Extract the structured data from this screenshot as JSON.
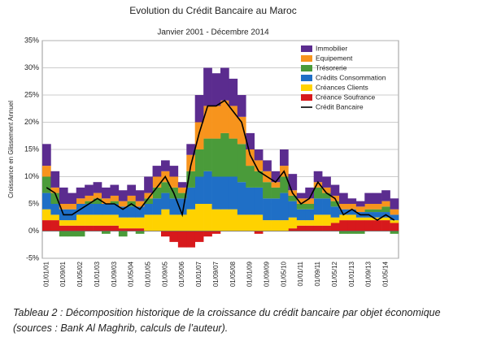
{
  "chart_data": {
    "type": "stacked-bar-line",
    "title": "Evolution du Crédit Bancaire au Maroc",
    "subtitle": "Janvier 2001 - Décembre 2014",
    "y_label": "Croissance en Glissement Annuel",
    "categories": [
      "01/01/01",
      null,
      "01/09/01",
      null,
      "01/05/02",
      null,
      "01/01/03",
      null,
      "01/09/03",
      null,
      "01/05/04",
      null,
      "01/01/05",
      null,
      "01/09/05",
      null,
      "01/05/06",
      null,
      "01/01/07",
      null,
      "01/09/07",
      null,
      "01/05/08",
      null,
      "01/01/09",
      null,
      "01/09/09",
      null,
      "01/05/10",
      null,
      "01/01/11",
      null,
      "01/09/11",
      null,
      "01/05/12",
      null,
      "01/01/13",
      null,
      "01/09/13",
      null,
      "01/05/14",
      null
    ],
    "series": [
      {
        "name": "Immobilier",
        "color": "#5b2c8f",
        "values": [
          4,
          3,
          3,
          2,
          2,
          2,
          2,
          2,
          2,
          2,
          2,
          2,
          3,
          2,
          2,
          2,
          1,
          2,
          5,
          7,
          6,
          6,
          5,
          4,
          3,
          2,
          2,
          2,
          3,
          3,
          1,
          2,
          2,
          2,
          2,
          2,
          1,
          1,
          2,
          2,
          2,
          2
        ]
      },
      {
        "name": "Equipement",
        "color": "#f7941d",
        "values": [
          2,
          1,
          1,
          1,
          1,
          1,
          1,
          1,
          1,
          1,
          1,
          1,
          1,
          2,
          2,
          2,
          1,
          3,
          5,
          6,
          6,
          6,
          6,
          5,
          3,
          2,
          2,
          1,
          2,
          1,
          1,
          1,
          1,
          1,
          1,
          1,
          1,
          1,
          1,
          1,
          1,
          1
        ]
      },
      {
        "name": "Trésorerie",
        "color": "#4a9b3a",
        "values": [
          3,
          2,
          -1,
          -1,
          -1,
          0.5,
          1,
          -0.5,
          0.5,
          -1,
          1,
          -0.5,
          1,
          2,
          2,
          2,
          1,
          3,
          5,
          6,
          7,
          8,
          7,
          7,
          4,
          3,
          3,
          2,
          3,
          1,
          1,
          1,
          2,
          1,
          1,
          -0.5,
          -0.5,
          -0.5,
          0.5,
          0.5,
          1,
          -0.5
        ]
      },
      {
        "name": "Crédits Consommation",
        "color": "#1f6fc6",
        "values": [
          3,
          2,
          2,
          2,
          2,
          2,
          2,
          2,
          2,
          2,
          2,
          2,
          2,
          3,
          3,
          3,
          3,
          4,
          5,
          6,
          6,
          6,
          6,
          6,
          5,
          5,
          4,
          4,
          5,
          3,
          2,
          2,
          3,
          3,
          2,
          1,
          1,
          1,
          1,
          1,
          1,
          1
        ]
      },
      {
        "name": "Créances Clients",
        "color": "#ffd200",
        "values": [
          2,
          1,
          1,
          1,
          2,
          2,
          2,
          2,
          2,
          2,
          2,
          2,
          3,
          3,
          4,
          3,
          3,
          4,
          5,
          5,
          4,
          4,
          4,
          3,
          3,
          3,
          2,
          2,
          2,
          2,
          1,
          1,
          2,
          2,
          1,
          1,
          1,
          0.5,
          0.5,
          0.5,
          0.5,
          0.5
        ]
      },
      {
        "name": "Créance Soufrance",
        "color": "#d7191c",
        "values": [
          2,
          2,
          1,
          1,
          1,
          1,
          1,
          1,
          1,
          0.5,
          0.5,
          0.5,
          0,
          0,
          -1,
          -2,
          -3,
          -3,
          -2,
          -1,
          -0.5,
          0,
          0,
          0,
          0,
          -0.5,
          0,
          0,
          0,
          0.5,
          1,
          1,
          1,
          1,
          1.5,
          2,
          2,
          2,
          2,
          2,
          2,
          1.5
        ]
      }
    ],
    "line": {
      "name": "Crédit Bancaire",
      "color": "#000000",
      "values": [
        8,
        7,
        3,
        3,
        4,
        5,
        6,
        5,
        5,
        4,
        5,
        4,
        6,
        8,
        10,
        7,
        3,
        12,
        18,
        23,
        23,
        24,
        22,
        20,
        14,
        11,
        10,
        9,
        11,
        7,
        5,
        6,
        9,
        7,
        6,
        3,
        4,
        3,
        3,
        2,
        3,
        2
      ]
    },
    "ylim": [
      -5,
      35
    ],
    "yticks": [
      {
        "value": -5,
        "label": "-5%"
      },
      {
        "value": 0,
        "label": "0%"
      },
      {
        "value": 5,
        "label": "5%"
      },
      {
        "value": 10,
        "label": "10%"
      },
      {
        "value": 15,
        "label": "15%"
      },
      {
        "value": 20,
        "label": "20%"
      },
      {
        "value": 25,
        "label": "25%"
      },
      {
        "value": 30,
        "label": "30%"
      },
      {
        "value": 35,
        "label": "35%"
      }
    ],
    "grid": true,
    "legend": "upper-right"
  },
  "caption": "Tableau 2 : Décomposition historique de la croissance du crédit bancaire par objet économique (sources : Bank Al Maghrib, calculs de l’auteur)."
}
